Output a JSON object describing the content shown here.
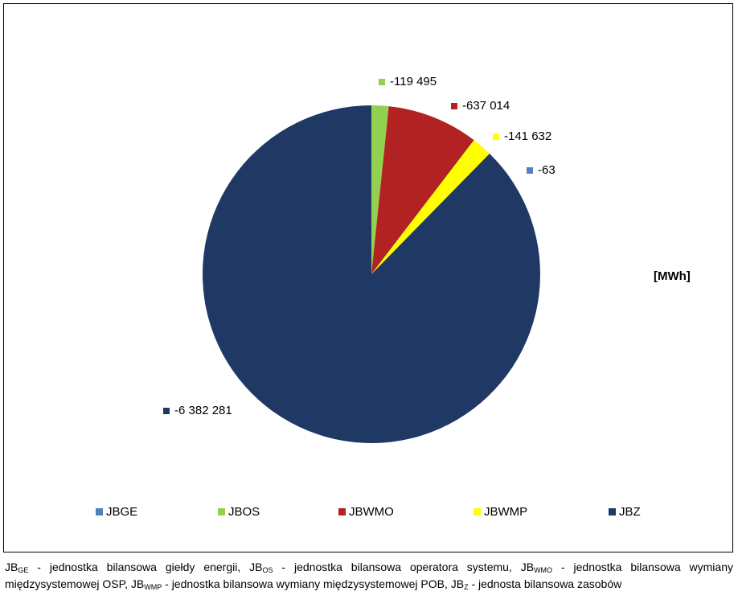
{
  "chart_data": {
    "type": "pie",
    "unit_label": "[MWh]",
    "slices": [
      {
        "name": "JBGE",
        "value": -63,
        "label": "-63",
        "color": "#4f81bd"
      },
      {
        "name": "JBOS",
        "value": -119495,
        "label": "-119 495",
        "color": "#92d050"
      },
      {
        "name": "JBWMO",
        "value": -637014,
        "label": "-637 014",
        "color": "#b22222"
      },
      {
        "name": "JBWMP",
        "value": -141632,
        "label": "-141 632",
        "color": "#ffff00"
      },
      {
        "name": "JBZ",
        "value": -6382281,
        "label": "-6 382 281",
        "color": "#1f3864"
      }
    ],
    "legend": {
      "placement": "bottom"
    }
  },
  "footnote": {
    "p1": "JB",
    "s1": "GE",
    "t1": " -  jednostka bilansowa giełdy energii, JB",
    "s2": "OS",
    "t2": " - jednostka bilansowa operatora systemu, JB",
    "s3": "WMO",
    "t3": " - jednostka bilansowa wymiany międzysystemowej OSP, JB",
    "s4": "WMP",
    "t4": " - jednostka bilansowa wymiany międzysystemowej POB, JB",
    "s5": "Z",
    "t5": " - jednosta bilansowa zasobów"
  }
}
